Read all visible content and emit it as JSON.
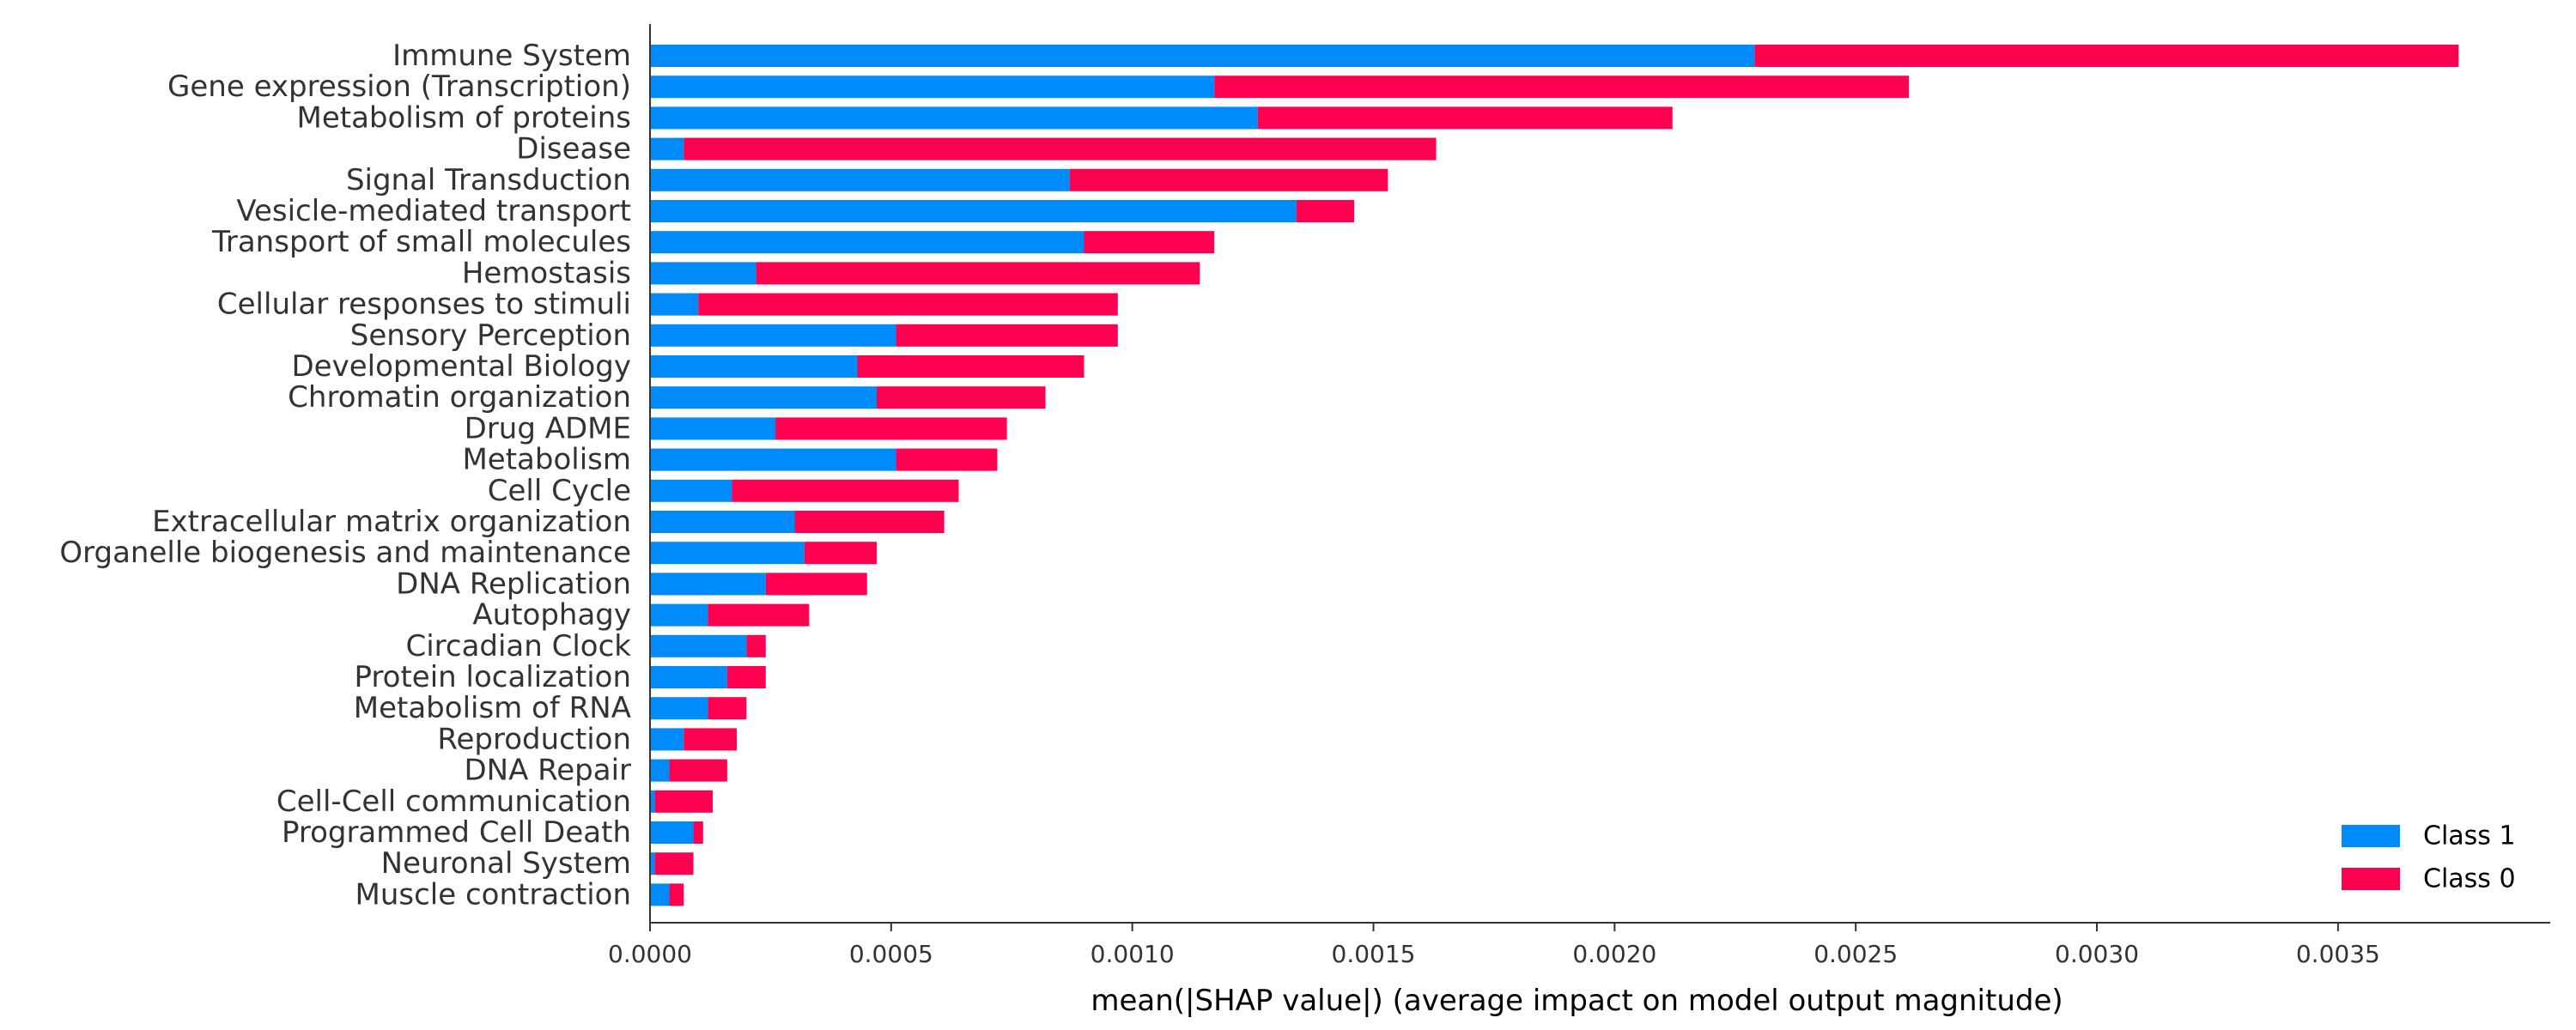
{
  "chart_data": {
    "type": "bar",
    "orientation": "horizontal",
    "stacked": true,
    "categories": [
      "Immune System",
      "Gene expression (Transcription)",
      "Metabolism of proteins",
      "Disease",
      "Signal Transduction",
      "Vesicle-mediated transport",
      "Transport of small molecules",
      "Hemostasis",
      "Cellular responses to stimuli",
      "Sensory Perception",
      "Developmental Biology",
      "Chromatin organization",
      "Drug ADME",
      "Metabolism",
      "Cell Cycle",
      "Extracellular matrix organization",
      "Organelle biogenesis and maintenance",
      "DNA Replication",
      "Autophagy",
      "Circadian Clock",
      "Protein localization",
      "Metabolism of RNA",
      "Reproduction",
      "DNA Repair",
      "Cell-Cell communication",
      "Programmed Cell Death",
      "Neuronal System",
      "Muscle contraction"
    ],
    "series": [
      {
        "name": "Class 1",
        "color": "#008bfb",
        "values": [
          0.00229,
          0.00117,
          0.00126,
          7e-05,
          0.00087,
          0.00134,
          0.0009,
          0.00022,
          0.0001,
          0.00051,
          0.00043,
          0.00047,
          0.00026,
          0.00051,
          0.00017,
          0.0003,
          0.00032,
          0.00024,
          0.00012,
          0.0002,
          0.00016,
          0.00012,
          7e-05,
          4e-05,
          1e-05,
          9e-05,
          1e-05,
          4e-05
        ]
      },
      {
        "name": "Class 0",
        "color": "#ff0051",
        "values": [
          0.00146,
          0.00144,
          0.00086,
          0.00156,
          0.00066,
          0.00012,
          0.00027,
          0.00092,
          0.00087,
          0.00046,
          0.00047,
          0.00035,
          0.00048,
          0.00021,
          0.00047,
          0.00031,
          0.00015,
          0.00021,
          0.00021,
          4e-05,
          8e-05,
          8e-05,
          0.00011,
          0.00012,
          0.00012,
          2e-05,
          8e-05,
          3e-05
        ]
      }
    ],
    "xlabel": "mean(|SHAP value|) (average impact on model output magnitude)",
    "ylabel": "",
    "xlim": [
      0,
      0.00394
    ],
    "xticks": [
      0,
      0.0005,
      0.001,
      0.0015,
      0.002,
      0.0025,
      0.003,
      0.0035
    ],
    "xtick_labels": [
      "0.0000",
      "0.0005",
      "0.0010",
      "0.0015",
      "0.0020",
      "0.0025",
      "0.0030",
      "0.0035"
    ],
    "grid": false,
    "legend": {
      "placement": "bottom-right",
      "entries": [
        "Class 1",
        "Class 0"
      ]
    }
  }
}
